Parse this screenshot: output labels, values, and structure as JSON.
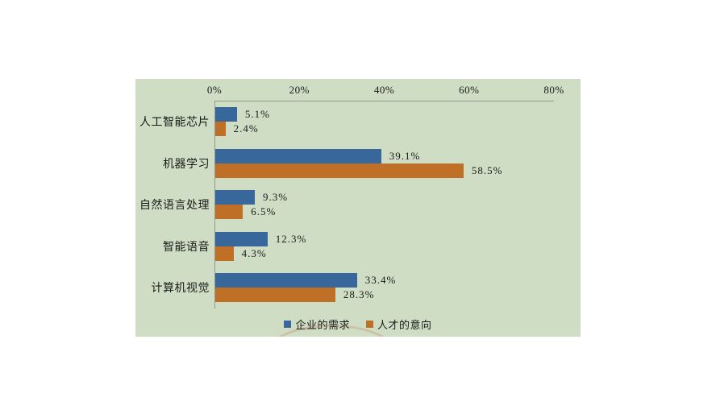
{
  "chart_data": {
    "type": "bar",
    "orientation": "horizontal",
    "title": "",
    "categories": [
      "人工智能芯片",
      "机器学习",
      "自然语言处理",
      "智能语音",
      "计算机视觉"
    ],
    "series": [
      {
        "name": "企业的需求",
        "color": "#38679B",
        "values": [
          5.1,
          39.1,
          9.3,
          12.3,
          33.4
        ],
        "labels": [
          "5.1%",
          "39.1%",
          "9.3%",
          "12.3%",
          "33.4%"
        ]
      },
      {
        "name": "人才的意向",
        "color": "#C06F26",
        "values": [
          2.4,
          58.5,
          6.5,
          4.3,
          28.3
        ],
        "labels": [
          "2.4%",
          "58.5%",
          "6.5%",
          "4.3%",
          "28.3%"
        ]
      }
    ],
    "x_axis": {
      "ticks": [
        "0%",
        "20%",
        "40%",
        "60%",
        "80%"
      ],
      "min": 0,
      "max": 80
    },
    "legend_position": "bottom",
    "grid": false
  },
  "colors": {
    "page_bg": "#FFFFFF",
    "panel_bg": "#CEDDC3",
    "axis_line": "#8B9A8B",
    "text": "#1B1B1B"
  }
}
